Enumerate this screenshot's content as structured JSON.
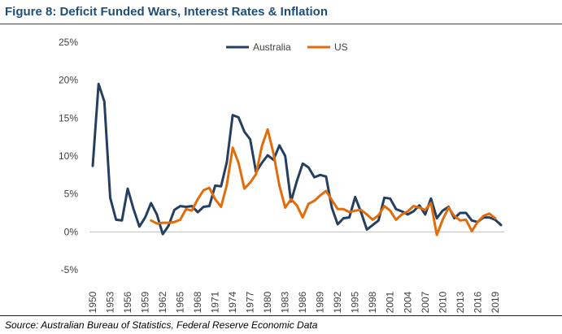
{
  "figure": {
    "title": "Figure 8:  Deficit Funded Wars, Interest Rates & Inflation",
    "source": "Source: Australian Bureau of Statistics, Federal Reserve Economic Data"
  },
  "chart_data": {
    "type": "line",
    "title": "",
    "xlabel": "",
    "ylabel": "",
    "ylim": [
      -5,
      25
    ],
    "yticks": [
      -5,
      0,
      5,
      10,
      15,
      20,
      25
    ],
    "ytick_labels": [
      "-5%",
      "0%",
      "5%",
      "10%",
      "15%",
      "20%",
      "25%"
    ],
    "xlim": [
      1950,
      2020
    ],
    "xticks": [
      1950,
      1953,
      1956,
      1959,
      1962,
      1965,
      1968,
      1971,
      1974,
      1977,
      1980,
      1983,
      1986,
      1989,
      1992,
      1995,
      1998,
      2001,
      2004,
      2007,
      2010,
      2013,
      2016,
      2019
    ],
    "xtick_labels": [
      "1950",
      "1953",
      "1956",
      "1959",
      "1962",
      "1965",
      "1968",
      "1971",
      "1974",
      "1977",
      "1980",
      "1983",
      "1986",
      "1989",
      "1992",
      "1995",
      "1998",
      "2001",
      "2004",
      "2007",
      "2010",
      "2013",
      "2016",
      "2019"
    ],
    "grid": false,
    "legend": "top-center",
    "series": [
      {
        "name": "Australia",
        "color": "#243f60",
        "x": [
          1950,
          1951,
          1952,
          1953,
          1954,
          1955,
          1956,
          1957,
          1958,
          1959,
          1960,
          1961,
          1962,
          1963,
          1964,
          1965,
          1966,
          1967,
          1968,
          1969,
          1970,
          1971,
          1972,
          1973,
          1974,
          1975,
          1976,
          1977,
          1978,
          1979,
          1980,
          1981,
          1982,
          1983,
          1984,
          1985,
          1986,
          1987,
          1988,
          1989,
          1990,
          1991,
          1992,
          1993,
          1994,
          1995,
          1996,
          1997,
          1998,
          1999,
          2000,
          2001,
          2002,
          2003,
          2004,
          2005,
          2006,
          2007,
          2008,
          2009,
          2010,
          2011,
          2012,
          2013,
          2014,
          2015,
          2016,
          2017,
          2018,
          2019,
          2020
        ],
        "values": [
          8.7,
          19.5,
          17.2,
          4.5,
          1.6,
          1.5,
          5.7,
          3.0,
          0.7,
          1.9,
          3.8,
          2.3,
          -0.3,
          0.8,
          2.9,
          3.4,
          3.3,
          3.4,
          2.6,
          3.3,
          3.4,
          6.1,
          6.0,
          9.2,
          15.4,
          15.1,
          13.2,
          12.2,
          7.9,
          9.1,
          10.1,
          9.5,
          11.4,
          10.0,
          4.0,
          6.7,
          9.0,
          8.5,
          7.2,
          7.5,
          7.3,
          3.2,
          1.0,
          1.8,
          1.9,
          4.6,
          2.6,
          0.3,
          0.9,
          1.5,
          4.5,
          4.4,
          3.0,
          2.7,
          2.3,
          2.7,
          3.5,
          2.3,
          4.4,
          1.8,
          2.8,
          3.3,
          1.8,
          2.5,
          2.5,
          1.5,
          1.3,
          1.9,
          1.9,
          1.6,
          0.9
        ]
      },
      {
        "name": "US",
        "color": "#e36c0a",
        "x": [
          1960,
          1961,
          1962,
          1963,
          1964,
          1965,
          1966,
          1967,
          1968,
          1969,
          1970,
          1971,
          1972,
          1973,
          1974,
          1975,
          1976,
          1977,
          1978,
          1979,
          1980,
          1981,
          1982,
          1983,
          1984,
          1985,
          1986,
          1987,
          1988,
          1989,
          1990,
          1991,
          1992,
          1993,
          1994,
          1995,
          1996,
          1997,
          1998,
          1999,
          2000,
          2001,
          2002,
          2003,
          2004,
          2005,
          2006,
          2007,
          2008,
          2009,
          2010,
          2011,
          2012,
          2013,
          2014,
          2015,
          2016,
          2017,
          2018,
          2019
        ],
        "values": [
          1.5,
          1.1,
          1.2,
          1.2,
          1.3,
          1.6,
          3.0,
          2.8,
          4.3,
          5.5,
          5.8,
          4.3,
          3.3,
          6.2,
          11.1,
          9.1,
          5.7,
          6.5,
          7.6,
          11.3,
          13.5,
          10.3,
          6.1,
          3.2,
          4.3,
          3.5,
          1.9,
          3.7,
          4.1,
          4.8,
          5.4,
          4.2,
          3.0,
          3.0,
          2.6,
          2.8,
          2.9,
          2.3,
          1.6,
          2.2,
          3.4,
          2.8,
          1.6,
          2.3,
          2.7,
          3.4,
          3.2,
          2.9,
          3.8,
          -0.4,
          1.6,
          3.2,
          2.1,
          1.5,
          1.6,
          0.1,
          1.3,
          2.1,
          2.4,
          1.8
        ]
      }
    ]
  }
}
